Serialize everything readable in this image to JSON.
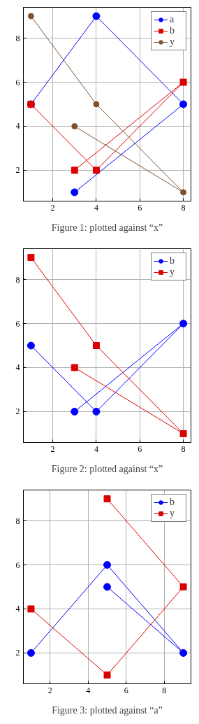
{
  "chart_data": [
    {
      "type": "line",
      "x": [
        3,
        8,
        4,
        1
      ],
      "xlim": [
        0.65,
        8.35
      ],
      "ylim": [
        0.6,
        9.4
      ],
      "xticks": [
        2,
        4,
        6,
        8
      ],
      "yticks": [
        2,
        4,
        6,
        8
      ],
      "grid": true,
      "legend": "top right",
      "annotations": [
        "Figure 1: plotted against “x”"
      ],
      "series": [
        {
          "name": "a",
          "color": "#0000ff",
          "marker": "circle",
          "values": [
            1,
            5,
            9,
            5
          ]
        },
        {
          "name": "b",
          "color": "#dd0000",
          "marker": "square",
          "values": [
            2,
            6,
            2,
            5
          ]
        },
        {
          "name": "y",
          "color": "#7f5230",
          "marker": "circle",
          "values": [
            4,
            1,
            5,
            9
          ]
        }
      ]
    },
    {
      "type": "line",
      "x": [
        3,
        8,
        4,
        1
      ],
      "xlim": [
        0.65,
        8.35
      ],
      "ylim": [
        0.6,
        9.4
      ],
      "xticks": [
        2,
        4,
        6,
        8
      ],
      "yticks": [
        2,
        4,
        6,
        8
      ],
      "grid": true,
      "legend": "top right",
      "annotations": [
        "Figure 2: plotted against “x”"
      ],
      "series": [
        {
          "name": "b",
          "color": "#0000ff",
          "marker": "circle",
          "values": [
            2,
            6,
            2,
            5
          ]
        },
        {
          "name": "y",
          "color": "#dd0000",
          "marker": "square",
          "values": [
            4,
            1,
            5,
            9
          ]
        }
      ]
    },
    {
      "type": "line",
      "x": [
        1,
        5,
        9,
        5
      ],
      "xlim": [
        0.6,
        9.4
      ],
      "ylim": [
        0.6,
        9.4
      ],
      "xticks": [
        2,
        4,
        6,
        8
      ],
      "yticks": [
        2,
        4,
        6,
        8
      ],
      "grid": true,
      "legend": "top right",
      "annotations": [
        "Figure 3: plotted against “a”"
      ],
      "series": [
        {
          "name": "b",
          "color": "#0000ff",
          "marker": "circle",
          "values": [
            2,
            6,
            2,
            5
          ]
        },
        {
          "name": "y",
          "color": "#dd0000",
          "marker": "square",
          "values": [
            4,
            1,
            5,
            9
          ]
        }
      ]
    }
  ]
}
